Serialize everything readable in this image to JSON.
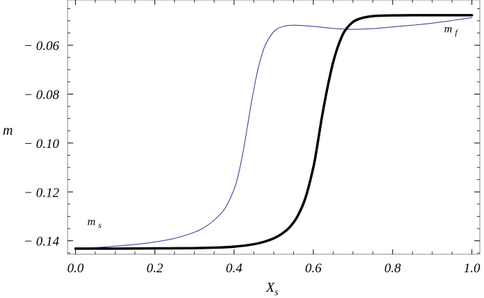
{
  "chart_data": {
    "type": "line",
    "title": "",
    "xlabel": "X",
    "xlabel_sub": "s",
    "ylabel": "m",
    "xlim": [
      -0.02,
      1.02
    ],
    "ylim": [
      -0.1455,
      -0.0415
    ],
    "xticks": [
      0.0,
      0.2,
      0.4,
      0.6,
      0.8,
      1.0
    ],
    "xtick_labels": [
      "0.0",
      "0.2",
      "0.4",
      "0.6",
      "0.8",
      "1.0"
    ],
    "yticks": [
      -0.14,
      -0.12,
      -0.1,
      -0.08,
      -0.06
    ],
    "ytick_labels": [
      "− 0.14",
      "− 0.12",
      "− 0.10",
      "− 0.08",
      "− 0.06"
    ],
    "grid": false,
    "annotations": [
      {
        "text": "m",
        "sub": "s",
        "x": 0.03,
        "y": -0.1335
      },
      {
        "text": "m",
        "sub": "f",
        "x": 0.93,
        "y": -0.0547
      }
    ],
    "series": [
      {
        "color": "#2e2e8f",
        "line_width": 1,
        "x": [
          0.0,
          0.05,
          0.1,
          0.15,
          0.2,
          0.25,
          0.3,
          0.33,
          0.36,
          0.38,
          0.4,
          0.41,
          0.42,
          0.43,
          0.44,
          0.45,
          0.46,
          0.47,
          0.48,
          0.5,
          0.52,
          0.55,
          0.6,
          0.65,
          0.7,
          0.75,
          0.8,
          0.85,
          0.9,
          0.95,
          1.0
        ],
        "y": [
          -0.1433,
          -0.1428,
          -0.1422,
          -0.1415,
          -0.1405,
          -0.139,
          -0.1365,
          -0.134,
          -0.13,
          -0.126,
          -0.119,
          -0.1135,
          -0.106,
          -0.097,
          -0.087,
          -0.078,
          -0.07,
          -0.064,
          -0.0595,
          -0.0545,
          -0.0525,
          -0.0518,
          -0.0523,
          -0.0531,
          -0.0535,
          -0.0532,
          -0.0525,
          -0.0518,
          -0.051,
          -0.0499,
          -0.0487
        ]
      },
      {
        "color": "#000000",
        "line_width": 3.5,
        "x": [
          0.0,
          0.1,
          0.2,
          0.3,
          0.35,
          0.4,
          0.45,
          0.48,
          0.5,
          0.52,
          0.54,
          0.56,
          0.58,
          0.6,
          0.61,
          0.62,
          0.63,
          0.64,
          0.65,
          0.66,
          0.67,
          0.68,
          0.7,
          0.72,
          0.75,
          0.8,
          0.85,
          0.9,
          0.95,
          1.0
        ],
        "y": [
          -0.1432,
          -0.1432,
          -0.1431,
          -0.143,
          -0.1428,
          -0.1424,
          -0.1414,
          -0.1402,
          -0.139,
          -0.1372,
          -0.1345,
          -0.13,
          -0.1225,
          -0.11,
          -0.101,
          -0.091,
          -0.082,
          -0.074,
          -0.067,
          -0.0615,
          -0.0572,
          -0.054,
          -0.0505,
          -0.049,
          -0.0481,
          -0.0478,
          -0.0477,
          -0.0477,
          -0.0477,
          -0.0477
        ]
      }
    ]
  }
}
